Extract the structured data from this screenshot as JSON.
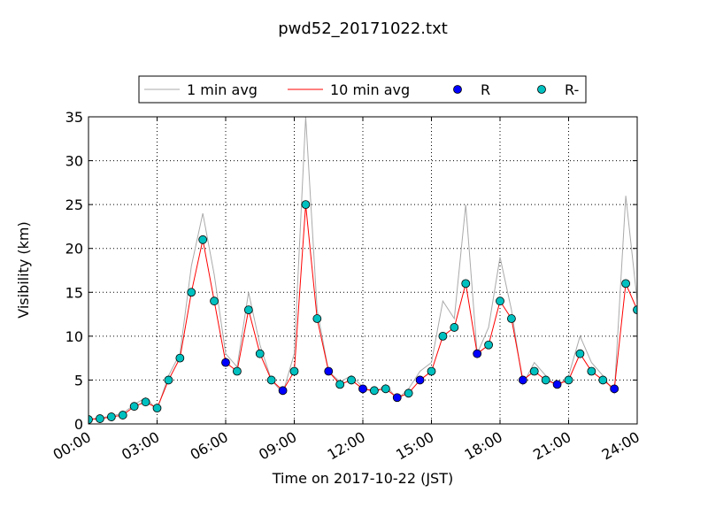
{
  "chart_data": {
    "type": "line_scatter",
    "title": "pwd52_20171022.txt",
    "x_label": "Time on 2017-10-22 (JST)",
    "y_label": "Visibility (km)",
    "x": [
      0,
      0.5,
      1,
      1.5,
      2,
      2.5,
      3,
      3.5,
      4,
      4.5,
      5,
      5.5,
      6,
      6.5,
      7,
      7.5,
      8,
      8.5,
      9,
      9.5,
      10,
      10.5,
      11,
      11.5,
      12,
      12.5,
      13,
      13.5,
      14,
      14.5,
      15,
      15.5,
      16,
      16.5,
      17,
      17.5,
      18,
      18.5,
      19,
      19.5,
      20,
      20.5,
      21,
      21.5,
      22,
      22.5,
      23,
      23.5,
      24
    ],
    "series": [
      {
        "name": "1 min avg",
        "kind": "line",
        "color": "#aaaaaa",
        "values": [
          0.5,
          0.7,
          0.9,
          1.2,
          2.2,
          3.0,
          1.6,
          5.5,
          8,
          18,
          24,
          17,
          8,
          6.5,
          15,
          9,
          5,
          3.5,
          8,
          35,
          13,
          6,
          4.8,
          5.5,
          4.2,
          3.5,
          4.5,
          2.8,
          4,
          6,
          7,
          14,
          12,
          25,
          8,
          11,
          19,
          13,
          4.5,
          7,
          5.5,
          4.2,
          5.5,
          10,
          7,
          5.5,
          3.5,
          26,
          14
        ]
      },
      {
        "name": "10 min avg",
        "kind": "line",
        "color": "#ff0000",
        "values": [
          0.5,
          0.6,
          0.8,
          1.0,
          2.0,
          2.5,
          1.8,
          5,
          7.5,
          15,
          21,
          14,
          7,
          6,
          13,
          8,
          5,
          3.8,
          6,
          25,
          12,
          6,
          4.5,
          5,
          4,
          3.8,
          4,
          3,
          3.5,
          5,
          6,
          10,
          11,
          16,
          8,
          9,
          14,
          12,
          5,
          6,
          5,
          4.5,
          5,
          8,
          6,
          5,
          4,
          16,
          13
        ]
      },
      {
        "name": "R",
        "kind": "scatter",
        "color": "#0000ff",
        "values": [
          null,
          null,
          null,
          null,
          null,
          null,
          null,
          null,
          null,
          null,
          null,
          null,
          7,
          null,
          null,
          null,
          null,
          3.8,
          null,
          null,
          null,
          6,
          null,
          null,
          4,
          null,
          null,
          3,
          null,
          5,
          null,
          null,
          null,
          null,
          8,
          null,
          null,
          null,
          5,
          null,
          null,
          4.5,
          null,
          null,
          null,
          null,
          4,
          null,
          null
        ]
      },
      {
        "name": "R-",
        "kind": "scatter",
        "color": "#00c0c0",
        "values": [
          0.5,
          0.6,
          0.8,
          1.0,
          2.0,
          2.5,
          1.8,
          5,
          7.5,
          15,
          21,
          14,
          null,
          6,
          13,
          8,
          5,
          null,
          6,
          25,
          12,
          null,
          4.5,
          5,
          null,
          3.8,
          4,
          null,
          3.5,
          null,
          6,
          10,
          11,
          16,
          null,
          9,
          14,
          12,
          null,
          6,
          5,
          null,
          5,
          8,
          6,
          5,
          null,
          16,
          13
        ]
      }
    ],
    "xlim": [
      0,
      24
    ],
    "xticks": [
      {
        "value": 0,
        "label": "00:00"
      },
      {
        "value": 3,
        "label": "03:00"
      },
      {
        "value": 6,
        "label": "06:00"
      },
      {
        "value": 9,
        "label": "09:00"
      },
      {
        "value": 12,
        "label": "12:00"
      },
      {
        "value": 15,
        "label": "15:00"
      },
      {
        "value": 18,
        "label": "18:00"
      },
      {
        "value": 21,
        "label": "21:00"
      },
      {
        "value": 24,
        "label": "24:00"
      }
    ],
    "ylim": [
      0,
      35
    ],
    "yticks": [
      0,
      5,
      10,
      15,
      20,
      25,
      30,
      35
    ],
    "grid": true,
    "legend": "top"
  }
}
